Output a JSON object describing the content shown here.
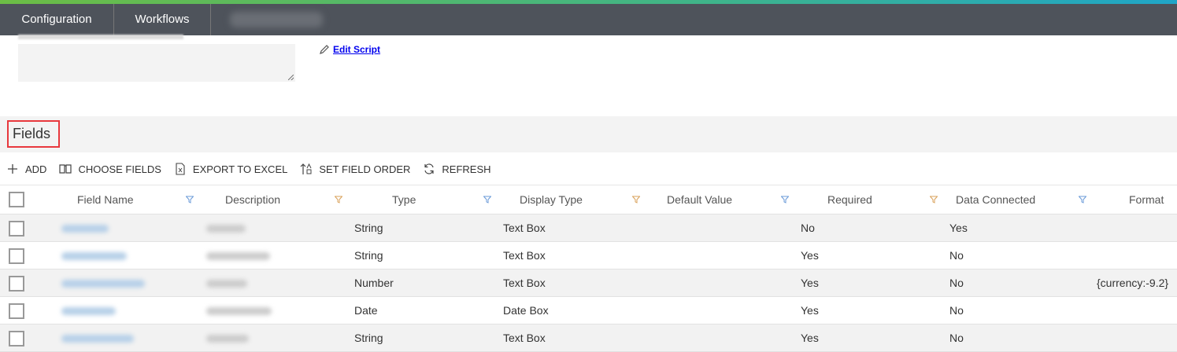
{
  "topbar": {
    "tabs": [
      {
        "label": "Configuration"
      },
      {
        "label": "Workflows"
      }
    ]
  },
  "script": {
    "edit_label": "Edit Script"
  },
  "section": {
    "title": "Fields"
  },
  "toolbar": {
    "add": "ADD",
    "choose_fields": "CHOOSE FIELDS",
    "export": "EXPORT TO EXCEL",
    "set_order": "SET FIELD ORDER",
    "refresh": "REFRESH"
  },
  "colors": {
    "filter_blue": "#6b9bd8",
    "filter_orange": "#d9a25b",
    "accent_green": "#4fb85a",
    "highlight_red": "#e8383d"
  },
  "table": {
    "columns": [
      "Field Name",
      "Description",
      "Type",
      "Display Type",
      "Default Value",
      "Required",
      "Data Connected",
      "Format"
    ],
    "rows": [
      {
        "type": "String",
        "display_type": "Text Box",
        "default_value": "",
        "required": "No",
        "data_connected": "Yes",
        "format": ""
      },
      {
        "type": "String",
        "display_type": "Text Box",
        "default_value": "",
        "required": "Yes",
        "data_connected": "No",
        "format": ""
      },
      {
        "type": "Number",
        "display_type": "Text Box",
        "default_value": "",
        "required": "Yes",
        "data_connected": "No",
        "format": "{currency:-9.2}"
      },
      {
        "type": "Date",
        "display_type": "Date Box",
        "default_value": "",
        "required": "Yes",
        "data_connected": "No",
        "format": ""
      },
      {
        "type": "String",
        "display_type": "Text Box",
        "default_value": "",
        "required": "Yes",
        "data_connected": "No",
        "format": ""
      }
    ]
  }
}
